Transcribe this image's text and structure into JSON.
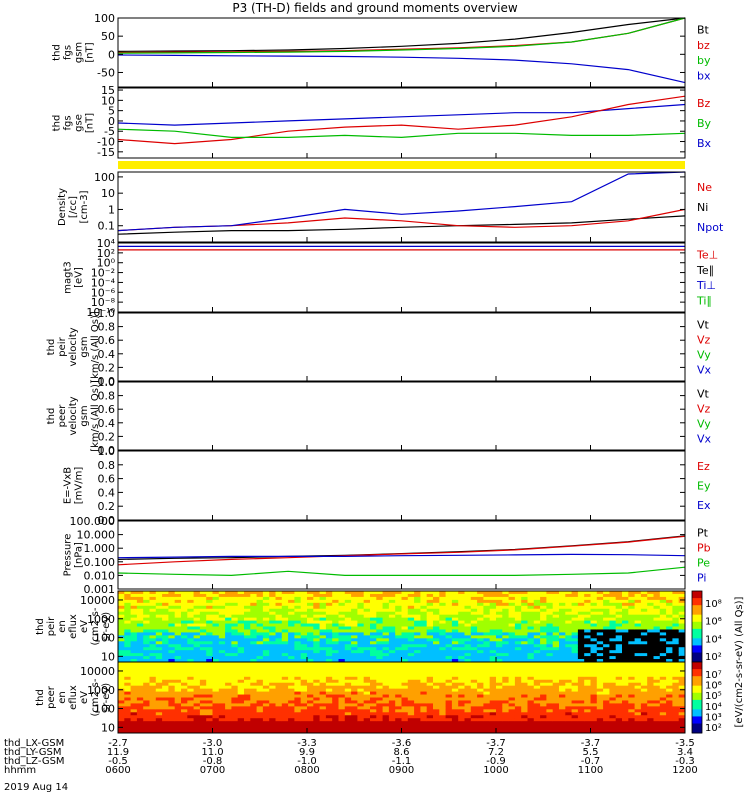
{
  "title": "P3 (TH-D) fields and ground moments overview",
  "date": "2019 Aug 14",
  "chart_data": [
    {
      "type": "line",
      "ylabel": [
        "thd",
        "fgs",
        "gsm",
        "[nT]"
      ],
      "ticks": [
        "100",
        "50",
        "0",
        "-50"
      ],
      "tick_values": [
        100,
        50,
        0,
        -50
      ],
      "ylim": [
        -90,
        100
      ],
      "legend": [
        {
          "name": "Bt",
          "color": "#000000"
        },
        {
          "name": "bz",
          "color": "#dd0000"
        },
        {
          "name": "by",
          "color": "#00bb00"
        },
        {
          "name": "bx",
          "color": "#0000cc"
        }
      ],
      "x": [
        0,
        0.1,
        0.2,
        0.3,
        0.4,
        0.5,
        0.6,
        0.7,
        0.8,
        0.9,
        1.0
      ],
      "series": [
        {
          "name": "Bt",
          "color": "#000000",
          "values": [
            8,
            9,
            10,
            12,
            16,
            22,
            30,
            42,
            60,
            82,
            115
          ]
        },
        {
          "name": "bz",
          "color": "#dd0000",
          "values": [
            5,
            6,
            7,
            8,
            10,
            14,
            18,
            24,
            34,
            58,
            110
          ]
        },
        {
          "name": "by",
          "color": "#00bb00",
          "values": [
            3,
            4,
            5,
            6,
            8,
            12,
            16,
            22,
            34,
            58,
            105
          ]
        },
        {
          "name": "bx",
          "color": "#0000cc",
          "values": [
            -2,
            -3,
            -4,
            -5,
            -6,
            -8,
            -11,
            -16,
            -26,
            -42,
            -78
          ]
        }
      ]
    },
    {
      "type": "line",
      "ylabel": [
        "thd",
        "fgs",
        "gse",
        "[nT]"
      ],
      "ticks": [
        "15",
        "10",
        "5",
        "0",
        "-5",
        "-10",
        "-15"
      ],
      "tick_values": [
        15,
        10,
        5,
        0,
        -5,
        -10,
        -15
      ],
      "ylim": [
        -18,
        16
      ],
      "legend": [
        {
          "name": "Bz",
          "color": "#dd0000"
        },
        {
          "name": "By",
          "color": "#00bb00"
        },
        {
          "name": "Bx",
          "color": "#0000cc"
        }
      ],
      "x": [
        0,
        0.1,
        0.2,
        0.3,
        0.4,
        0.5,
        0.6,
        0.7,
        0.8,
        0.9,
        1.0
      ],
      "series": [
        {
          "name": "Bx",
          "color": "#0000cc",
          "values": [
            -1,
            -2,
            -1,
            0,
            1,
            2,
            3,
            4,
            4,
            6,
            8
          ]
        },
        {
          "name": "Bz",
          "color": "#dd0000",
          "values": [
            -9,
            -11,
            -9,
            -5,
            -3,
            -2,
            -4,
            -2,
            2,
            8,
            12
          ]
        },
        {
          "name": "By",
          "color": "#00bb00",
          "values": [
            -4,
            -5,
            -8,
            -8,
            -7,
            -8,
            -6,
            -6,
            -7,
            -7,
            -6
          ]
        }
      ]
    },
    {
      "type": "line",
      "ylabel": [
        "Density",
        "[/cc]",
        "[cm-3]"
      ],
      "ticks": [
        "100",
        "10",
        "1",
        "0.1"
      ],
      "tick_values": [
        100,
        10,
        1,
        0.1
      ],
      "ylim": [
        0.01,
        200
      ],
      "log": true,
      "legend": [
        {
          "name": "Ne",
          "color": "#dd0000"
        },
        {
          "name": "Ni",
          "color": "#000000"
        },
        {
          "name": "Npot",
          "color": "#0000cc"
        }
      ],
      "x": [
        0,
        0.1,
        0.2,
        0.3,
        0.4,
        0.5,
        0.6,
        0.7,
        0.8,
        0.9,
        1.0
      ],
      "series": [
        {
          "name": "Ni",
          "color": "#000000",
          "values": [
            0.03,
            0.04,
            0.05,
            0.05,
            0.06,
            0.08,
            0.1,
            0.12,
            0.15,
            0.25,
            0.4
          ]
        },
        {
          "name": "Ne",
          "color": "#dd0000",
          "values": [
            0.05,
            0.08,
            0.1,
            0.15,
            0.3,
            0.2,
            0.1,
            0.08,
            0.1,
            0.2,
            1.0
          ]
        },
        {
          "name": "Npot",
          "color": "#0000cc",
          "values": [
            0.05,
            0.08,
            0.1,
            0.3,
            1.0,
            0.5,
            0.8,
            1.5,
            3.0,
            150,
            200
          ]
        }
      ]
    },
    {
      "type": "line",
      "ylabel": [
        "magt3",
        "[eV]"
      ],
      "ticks": [
        "10⁴",
        "10²",
        "10⁰",
        "10⁻²",
        "10⁻⁴",
        "10⁻⁶",
        "10⁻⁸",
        "10⁻¹⁰"
      ],
      "tick_values": [
        10000.0,
        100.0,
        1,
        0.01,
        0.0001,
        1e-06,
        1e-08,
        1e-10
      ],
      "ylim": [
        1e-10,
        10000.0
      ],
      "log": true,
      "legend": [
        {
          "name": "Te⊥",
          "color": "#dd0000"
        },
        {
          "name": "Te∥",
          "color": "#000000"
        },
        {
          "name": "Ti⊥",
          "color": "#0000cc"
        },
        {
          "name": "Ti∥",
          "color": "#00bb00"
        }
      ],
      "x": [
        0,
        1
      ],
      "series": [
        {
          "name": "Ti⊥",
          "color": "#0000cc",
          "values": [
            2000,
            2000
          ]
        },
        {
          "name": "Te⊥",
          "color": "#dd0000",
          "values": [
            400,
            400
          ]
        }
      ]
    },
    {
      "type": "line",
      "ylabel": [
        "thd",
        "peir",
        "velocity",
        "gsm",
        "[km/s (All Qs)]"
      ],
      "ticks": [
        "1.0",
        "0.8",
        "0.6",
        "0.4",
        "0.2",
        "0.0"
      ],
      "tick_values": [
        1.0,
        0.8,
        0.6,
        0.4,
        0.2,
        0.0
      ],
      "ylim": [
        0,
        1
      ],
      "legend": [
        {
          "name": "Vt",
          "color": "#000000"
        },
        {
          "name": "Vz",
          "color": "#dd0000"
        },
        {
          "name": "Vy",
          "color": "#00bb00"
        },
        {
          "name": "Vx",
          "color": "#0000cc"
        }
      ],
      "x": [],
      "series": []
    },
    {
      "type": "line",
      "ylabel": [
        "thd",
        "peer",
        "velocity",
        "gsm",
        "[km/s (All Qs)]"
      ],
      "ticks": [
        "1.0",
        "0.8",
        "0.6",
        "0.4",
        "0.2",
        "0.0"
      ],
      "tick_values": [
        1.0,
        0.8,
        0.6,
        0.4,
        0.2,
        0.0
      ],
      "ylim": [
        0,
        1
      ],
      "legend": [
        {
          "name": "Vt",
          "color": "#000000"
        },
        {
          "name": "Vz",
          "color": "#dd0000"
        },
        {
          "name": "Vy",
          "color": "#00bb00"
        },
        {
          "name": "Vx",
          "color": "#0000cc"
        }
      ],
      "x": [],
      "series": []
    },
    {
      "type": "line",
      "ylabel": [
        "E=-VxB",
        "[mV/m]"
      ],
      "ticks": [
        "1.0",
        "0.8",
        "0.6",
        "0.4",
        "0.2",
        "0.0"
      ],
      "tick_values": [
        1.0,
        0.8,
        0.6,
        0.4,
        0.2,
        0.0
      ],
      "ylim": [
        0,
        1
      ],
      "legend": [
        {
          "name": "Ez",
          "color": "#dd0000"
        },
        {
          "name": "Ey",
          "color": "#00bb00"
        },
        {
          "name": "Ex",
          "color": "#0000cc"
        }
      ],
      "x": [],
      "series": []
    },
    {
      "type": "line",
      "ylabel": [
        "Pressure",
        "[nPa]"
      ],
      "ticks": [
        "100.000",
        "10.000",
        "1.000",
        "0.100",
        "0.010",
        "0.001"
      ],
      "tick_values": [
        100,
        10,
        1,
        0.1,
        0.01,
        0.001
      ],
      "ylim": [
        0.001,
        100
      ],
      "log": true,
      "legend": [
        {
          "name": "Pt",
          "color": "#000000"
        },
        {
          "name": "Pb",
          "color": "#dd0000"
        },
        {
          "name": "Pe",
          "color": "#00bb00"
        },
        {
          "name": "Pi",
          "color": "#0000cc"
        }
      ],
      "x": [
        0,
        0.1,
        0.2,
        0.3,
        0.4,
        0.5,
        0.6,
        0.7,
        0.8,
        0.9,
        1.0
      ],
      "series": [
        {
          "name": "Pt",
          "color": "#000000",
          "values": [
            0.15,
            0.18,
            0.2,
            0.25,
            0.3,
            0.4,
            0.55,
            0.8,
            1.5,
            3.0,
            8.0
          ]
        },
        {
          "name": "Pb",
          "color": "#dd0000",
          "values": [
            0.06,
            0.1,
            0.15,
            0.2,
            0.28,
            0.38,
            0.5,
            0.75,
            1.4,
            2.8,
            7.5
          ]
        },
        {
          "name": "Pi",
          "color": "#0000cc",
          "values": [
            0.2,
            0.22,
            0.25,
            0.25,
            0.25,
            0.28,
            0.3,
            0.32,
            0.35,
            0.33,
            0.28
          ]
        },
        {
          "name": "Pe",
          "color": "#00bb00",
          "values": [
            0.015,
            0.012,
            0.01,
            0.02,
            0.01,
            0.01,
            0.01,
            0.01,
            0.012,
            0.015,
            0.04
          ]
        }
      ]
    },
    {
      "type": "heatmap",
      "ylabel": [
        "thd",
        "peir",
        "en",
        "eflux",
        "eV",
        "(cm2-s-",
        "sr-eV)"
      ],
      "ticks": [
        "10000",
        "1000",
        "100",
        "10"
      ],
      "tick_values": [
        10000,
        1000,
        100,
        10
      ],
      "ylim": [
        5,
        30000
      ],
      "log": true,
      "colorbar_ticks": [
        "10⁸",
        "10⁶",
        "10⁴",
        "10²"
      ]
    },
    {
      "type": "heatmap",
      "ylabel": [
        "thd",
        "peer",
        "en",
        "eflux",
        "eV",
        "(cm2-s-",
        "sr-eV)"
      ],
      "ticks": [
        "10000",
        "1000",
        "100",
        "10"
      ],
      "tick_values": [
        10000,
        1000,
        100,
        10
      ],
      "ylim": [
        5,
        30000
      ],
      "log": true,
      "colorbar_ticks": [
        "10⁷",
        "10⁶",
        "10⁵",
        "10⁴",
        "10³",
        "10²"
      ]
    }
  ],
  "colorbar_label": "[eV/(cm2-s-sr-eV) (All Qs)]",
  "xaxis": {
    "row_labels": [
      "thd_LX-GSM",
      "thd_LY-GSM",
      "thd_LZ-GSM",
      "hhmm"
    ],
    "columns": [
      {
        "LX": "-2.7",
        "LY": "11.9",
        "LZ": "-0.5",
        "hhmm": "0600"
      },
      {
        "LX": "-3.0",
        "LY": "11.0",
        "LZ": "-0.8",
        "hhmm": "0700"
      },
      {
        "LX": "-3.3",
        "LY": "9.9",
        "LZ": "-1.0",
        "hhmm": "0800"
      },
      {
        "LX": "-3.6",
        "LY": "8.6",
        "LZ": "-1.1",
        "hhmm": "0900"
      },
      {
        "LX": "-3.7",
        "LY": "7.2",
        "LZ": "-0.9",
        "hhmm": "1000"
      },
      {
        "LX": "-3.7",
        "LY": "5.5",
        "LZ": "-0.7",
        "hhmm": "1100"
      },
      {
        "LX": "-3.5",
        "LY": "3.4",
        "LZ": "-0.3",
        "hhmm": "1200"
      }
    ]
  }
}
